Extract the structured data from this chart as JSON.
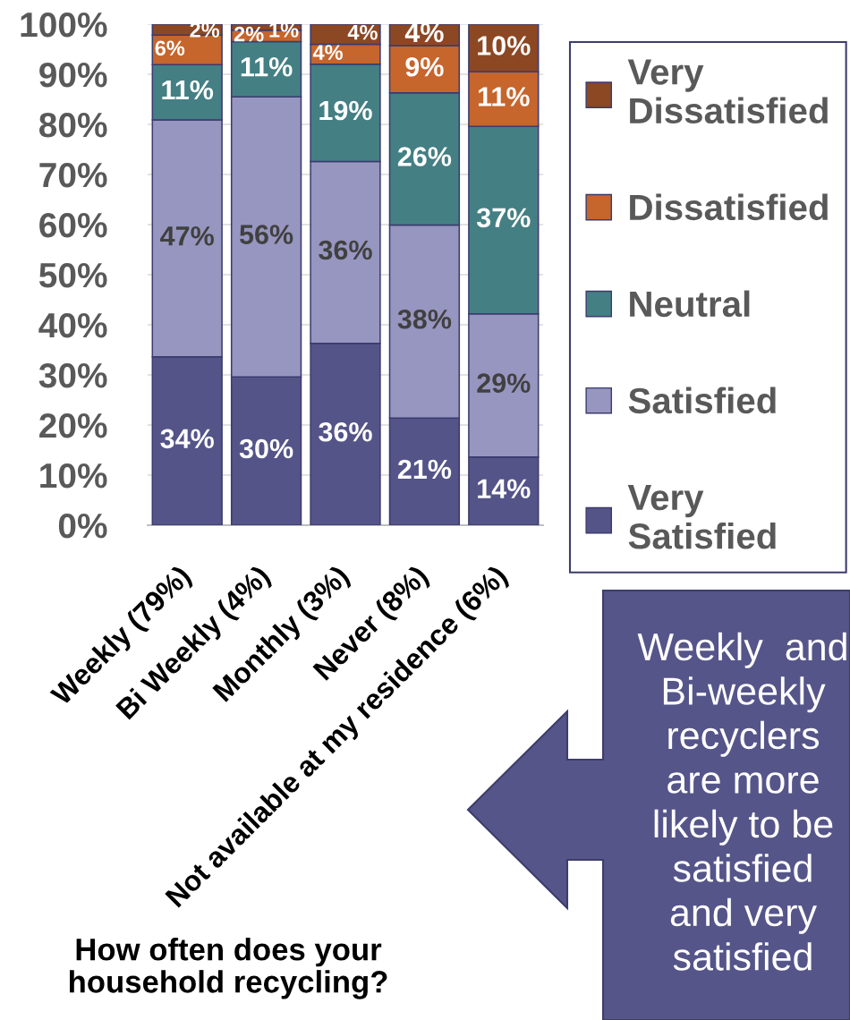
{
  "chart_data": {
    "type": "bar",
    "stacked": true,
    "xlabel": "How often does your household recycling?",
    "categories": [
      "Weekly (79%)",
      "Bi Weekly (4%)",
      "Monthly (3%)",
      "Never (8%)",
      "Not available at my residence (6%)"
    ],
    "series": [
      {
        "name": "Very Satisfied",
        "color": "#545489",
        "values": [
          33.6,
          29.6,
          36.3,
          21.4,
          13.6
        ],
        "value_labels": [
          "34%",
          "30%",
          "36%",
          "21%",
          "14%"
        ]
      },
      {
        "name": "Satisfied",
        "color": "#9696c0",
        "values": [
          47.3,
          55.9,
          36.3,
          38.5,
          28.6
        ],
        "value_labels": [
          "47%",
          "56%",
          "36%",
          "38%",
          "29%"
        ]
      },
      {
        "name": "Neutral",
        "color": "#447f84",
        "values": [
          11.0,
          11.0,
          19.4,
          26.4,
          37.4
        ],
        "value_labels": [
          "11%",
          "11%",
          "19%",
          "26%",
          "37%"
        ]
      },
      {
        "name": "Dissatisfied",
        "color": "#c6652c",
        "values": [
          5.9,
          2.3,
          4.0,
          9.4,
          10.9
        ],
        "value_labels": [
          "6%",
          "2%",
          "4%",
          "9%",
          "11%"
        ]
      },
      {
        "name": "Very Dissatisfied",
        "color": "#8c4723",
        "values": [
          2.2,
          1.2,
          4.0,
          4.3,
          9.5
        ],
        "value_labels": [
          "2%",
          "1%",
          "4%",
          "4%",
          "10%"
        ]
      }
    ],
    "ylim": [
      0,
      100
    ],
    "yticks": [
      {
        "value": 0,
        "label": "0%"
      },
      {
        "value": 10,
        "label": "10%"
      },
      {
        "value": 20,
        "label": "20%"
      },
      {
        "value": 30,
        "label": "30%"
      },
      {
        "value": 40,
        "label": "40%"
      },
      {
        "value": 50,
        "label": "50%"
      },
      {
        "value": 60,
        "label": "60%"
      },
      {
        "value": 70,
        "label": "70%"
      },
      {
        "value": 80,
        "label": "80%"
      },
      {
        "value": 90,
        "label": "90%"
      },
      {
        "value": 100,
        "label": "100%"
      }
    ],
    "grid": "y",
    "legend": "right",
    "annotations": [
      "Weekly  and Bi-weekly recyclers are more likely to be satisfied and very satisfied"
    ]
  }
}
